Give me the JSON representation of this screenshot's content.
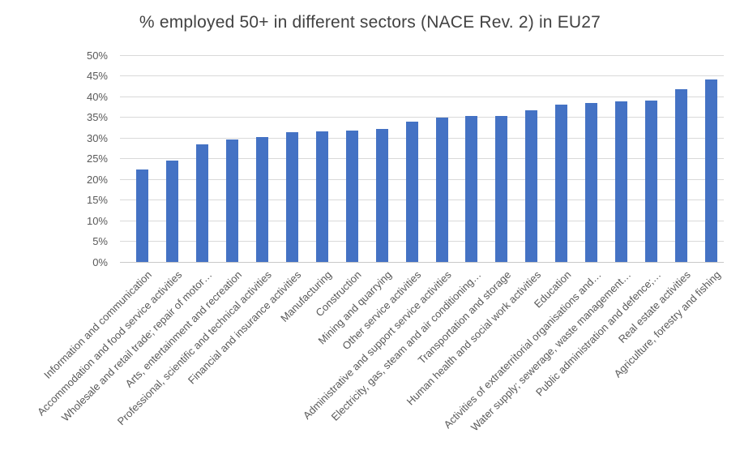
{
  "chart_data": {
    "type": "bar",
    "title": "% employed 50+ in different sectors (NACE Rev. 2) in EU27",
    "categories": [
      "Information and communication",
      "Accommodation and food service activities",
      "Wholesale and retail trade; repair of motor…",
      "Arts, entertainment and recreation",
      "Professional, scientific and technical activities",
      "Financial and insurance activities",
      "Manufacturing",
      "Construction",
      "Mining and quarrying",
      "Other service activities",
      "Administrative and support service activities",
      "Electricity, gas, steam and air conditioning…",
      "Transportation and storage",
      "Human health and social work activities",
      "Education",
      "Activities of extraterritorial organisations and…",
      "Water supply; sewerage, waste management…",
      "Public administration and defence;…",
      "Real estate activities",
      "Agriculture, forestry and fishing"
    ],
    "values": [
      22.3,
      24.5,
      28.4,
      29.6,
      30.1,
      31.4,
      31.6,
      31.7,
      32.2,
      33.9,
      34.9,
      35.2,
      35.3,
      36.7,
      38.1,
      38.4,
      38.9,
      39.0,
      41.8,
      44.1
    ],
    "xlabel": "",
    "ylabel": "",
    "ylim": [
      0,
      50
    ],
    "ytick_step": 5,
    "ytick_labels": [
      "0%",
      "5%",
      "10%",
      "15%",
      "20%",
      "25%",
      "30%",
      "35%",
      "40%",
      "45%",
      "50%"
    ],
    "grid": true,
    "legend_position": "none",
    "bar_color": "#4472C4",
    "gridline_color": "#D9D9D9",
    "tick_label_color": "#595959",
    "title_color": "#424242"
  }
}
